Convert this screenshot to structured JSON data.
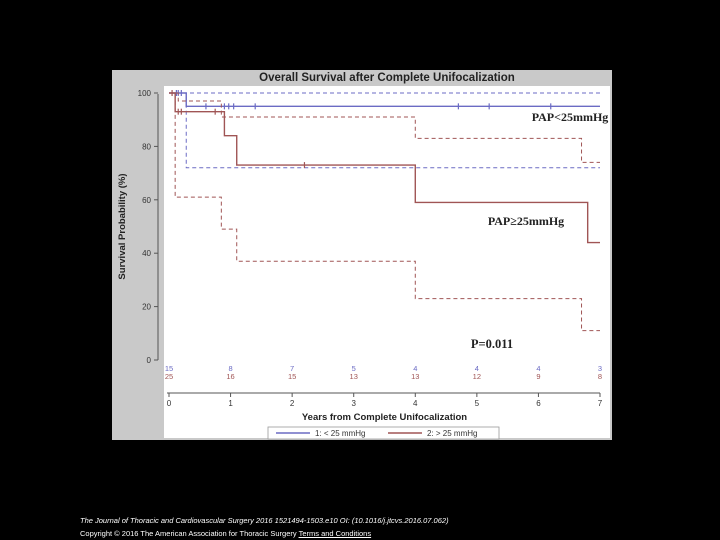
{
  "chart_data": {
    "type": "line",
    "subtype": "kaplan-meier",
    "title": "Overall Survival after Complete Unifocalization",
    "xlabel": "Years from Complete Unifocalization",
    "ylabel": "Survival Probability (%)",
    "xlim": [
      0,
      7
    ],
    "ylim": [
      0,
      100
    ],
    "x_ticks": [
      0,
      1,
      2,
      3,
      4,
      5,
      6,
      7
    ],
    "y_ticks": [
      0,
      20,
      40,
      60,
      80,
      100
    ],
    "grid": false,
    "legend_position": "bottom-right",
    "series": [
      {
        "name": "1: < 25 mmHg",
        "color": "#6b6bc4",
        "label": "PAP<25mmHg",
        "steps": [
          [
            0,
            100
          ],
          [
            0.28,
            95
          ],
          [
            7,
            95
          ]
        ],
        "ci_upper": [
          [
            0,
            100
          ],
          [
            7,
            100
          ]
        ],
        "ci_lower": [
          [
            0,
            100
          ],
          [
            0.28,
            72
          ],
          [
            7,
            72
          ]
        ],
        "censor_x": [
          0.12,
          0.15,
          0.2,
          0.6,
          0.9,
          0.97,
          1.05,
          1.4,
          4.7,
          5.2,
          6.2
        ],
        "at_risk": [
          15,
          8,
          7,
          5,
          4,
          4,
          4,
          3
        ]
      },
      {
        "name": "2: > 25 mmHg",
        "color": "#a05555",
        "label": "PAP≥25mmHg",
        "steps": [
          [
            0,
            100
          ],
          [
            0.1,
            93
          ],
          [
            0.9,
            84
          ],
          [
            1.1,
            73
          ],
          [
            4,
            59
          ],
          [
            6.8,
            44
          ],
          [
            7,
            44
          ]
        ],
        "ci_upper": [
          [
            0,
            100
          ],
          [
            0.15,
            97
          ],
          [
            0.85,
            91
          ],
          [
            4,
            83
          ],
          [
            6.7,
            74
          ],
          [
            7,
            74
          ]
        ],
        "ci_lower": [
          [
            0,
            100
          ],
          [
            0.1,
            61
          ],
          [
            0.85,
            49
          ],
          [
            1.1,
            37
          ],
          [
            4,
            23
          ],
          [
            6.7,
            11
          ],
          [
            7,
            11
          ]
        ],
        "censor_x": [
          0.05,
          0.15,
          0.2,
          0.75,
          2.2
        ],
        "at_risk": [
          25,
          16,
          15,
          13,
          13,
          12,
          9,
          8
        ]
      }
    ],
    "annotations": [
      "P=0.011"
    ]
  },
  "legend": {
    "items": [
      {
        "label": "1: < 25 mmHg",
        "color": "#6b6bc4"
      },
      {
        "label": "2: > 25 mmHg",
        "color": "#a05555"
      }
    ]
  },
  "caption": {
    "line1": "The Journal of Thoracic and Cardiovascular Surgery 2016 1521494-1503.e10 OI: (10.1016/j.jtcvs.2016.07.062)",
    "line2_prefix": "Copyright © 2016 The American Association for Thoracic Surgery ",
    "line2_link": "Terms and Conditions"
  }
}
